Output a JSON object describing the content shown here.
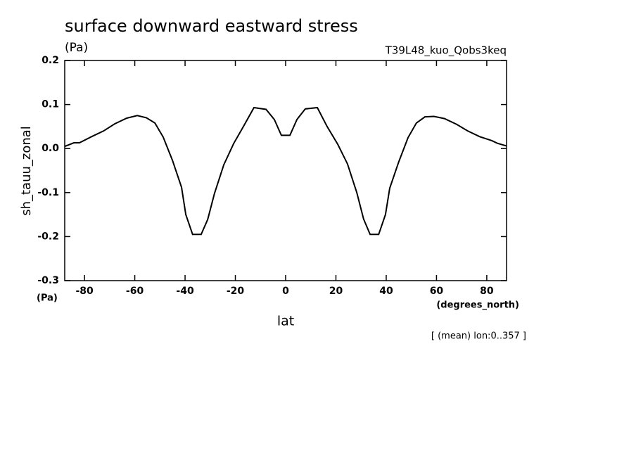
{
  "chart_data": {
    "type": "line",
    "title": "surface downward eastward stress",
    "units": "(Pa)",
    "experiment": "T39L48_kuo_Qobs3keq",
    "ylabel": "sh_tauu_zonal",
    "yunits": "(Pa)",
    "xlabel": "lat",
    "xunits": "(degrees_north)",
    "note": "[ (mean) lon:0..357 ]",
    "x": [
      -87.8,
      -84.2,
      -82,
      -77.2,
      -72.4,
      -68,
      -63.2,
      -59,
      -55.4,
      -52,
      -48.7,
      -45,
      -41.4,
      -39.7,
      -37,
      -33.6,
      -31,
      -28.3,
      -24.6,
      -20.7,
      -16.5,
      -12.6,
      -7.8,
      -4.5,
      -1.7,
      1.7,
      4.5,
      7.8,
      12.6,
      16.5,
      20.7,
      24.6,
      28.3,
      31,
      33.6,
      37,
      39.7,
      41.4,
      45,
      48.7,
      52,
      55.4,
      59,
      63.2,
      68,
      72.4,
      77.2,
      82,
      84.2,
      87.8
    ],
    "series": [
      {
        "color": "#000000",
        "values": [
          0.005,
          0.013,
          0.013,
          0.027,
          0.04,
          0.056,
          0.069,
          0.075,
          0.07,
          0.058,
          0.026,
          -0.027,
          -0.088,
          -0.15,
          -0.195,
          -0.195,
          -0.161,
          -0.102,
          -0.037,
          0.011,
          0.053,
          0.093,
          0.089,
          0.066,
          0.03,
          0.03,
          0.066,
          0.09,
          0.093,
          0.05,
          0.01,
          -0.035,
          -0.1,
          -0.16,
          -0.195,
          -0.195,
          -0.15,
          -0.09,
          -0.03,
          0.025,
          0.058,
          0.072,
          0.073,
          0.068,
          0.055,
          0.04,
          0.027,
          0.018,
          0.012,
          0.006
        ]
      }
    ],
    "xlim": [
      -87.86,
      87.86
    ],
    "ylim": [
      -0.3,
      0.2
    ],
    "xticks": [
      -80,
      -60,
      -40,
      -20,
      0,
      20,
      40,
      60,
      80
    ],
    "yticks": [
      -0.3,
      -0.2,
      -0.1,
      {
        "value": 0,
        "label": "0.0"
      },
      0.1,
      0.2
    ]
  }
}
